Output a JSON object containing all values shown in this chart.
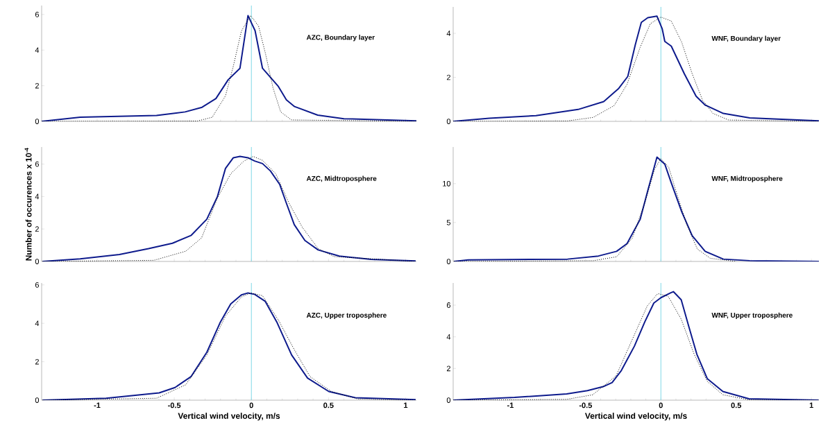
{
  "chart_data": [
    {
      "type": "line",
      "annotations": [
        "AZC, Boundary layer"
      ],
      "xlim": [
        -1.36,
        1.07
      ],
      "xticks": [
        -1,
        -0.5,
        0,
        0.5,
        1
      ],
      "ylim": [
        0,
        6.5
      ],
      "yticks": [
        0,
        2,
        4,
        6
      ],
      "tick_labels": "y",
      "ref_lines": [
        {
          "axis": "x",
          "value": 0,
          "color": "#7fd8e6"
        }
      ],
      "series": [
        {
          "color": "#0d1a8c",
          "line_style": "solid",
          "x": [
            -1.36,
            -1.11,
            -0.615,
            -0.43,
            -0.32,
            -0.23,
            -0.15,
            -0.074,
            -0.022,
            0.024,
            0.072,
            0.175,
            0.227,
            0.28,
            0.43,
            0.6,
            1.07
          ],
          "values": [
            0,
            0.23,
            0.33,
            0.53,
            0.79,
            1.28,
            2.34,
            2.98,
            5.94,
            5.09,
            2.98,
            1.96,
            1.21,
            0.83,
            0.35,
            0.15,
            0.03
          ]
        },
        {
          "color": "#000000",
          "line_style": "dotted",
          "x": [
            -1.36,
            -0.35,
            -0.254,
            -0.168,
            -0.117,
            -0.065,
            -0.005,
            0.046,
            0.09,
            0.14,
            0.19,
            0.26,
            1.07
          ],
          "values": [
            0,
            0.02,
            0.23,
            1.43,
            3.1,
            5.06,
            5.94,
            5.36,
            3.85,
            1.89,
            0.53,
            0.08,
            0
          ]
        }
      ]
    },
    {
      "type": "line",
      "annotations": [
        "WNF, Boundary layer"
      ],
      "xlim": [
        -1.38,
        1.05
      ],
      "xticks": [
        -1,
        -0.5,
        0,
        0.5,
        1
      ],
      "ylim": [
        0,
        5.2
      ],
      "yticks": [
        0,
        2,
        4
      ],
      "tick_labels": "y",
      "ref_lines": [
        {
          "axis": "x",
          "value": 0,
          "color": "#7fd8e6"
        }
      ],
      "series": [
        {
          "color": "#0d1a8c",
          "line_style": "solid",
          "x": [
            -1.38,
            -1.14,
            -0.83,
            -0.55,
            -0.38,
            -0.28,
            -0.22,
            -0.17,
            -0.13,
            -0.087,
            -0.026,
            0.009,
            0.026,
            0.069,
            0.156,
            0.234,
            0.294,
            0.415,
            0.59,
            1.05
          ],
          "values": [
            0,
            0.14,
            0.26,
            0.54,
            0.9,
            1.5,
            2.04,
            3.48,
            4.5,
            4.71,
            4.78,
            4.2,
            3.63,
            3.42,
            2.16,
            1.14,
            0.74,
            0.36,
            0.16,
            0.02
          ]
        },
        {
          "color": "#000000",
          "line_style": "dotted",
          "x": [
            -1.38,
            -0.62,
            -0.45,
            -0.31,
            -0.225,
            -0.138,
            -0.07,
            0,
            0.069,
            0.138,
            0.208,
            0.277,
            0.346,
            0.45,
            1.05
          ],
          "values": [
            0,
            0.02,
            0.18,
            0.72,
            1.68,
            3.36,
            4.44,
            4.74,
            4.56,
            3.6,
            2.16,
            0.96,
            0.36,
            0.06,
            0
          ]
        }
      ]
    },
    {
      "type": "line",
      "ylabel": "Number of occurences  x 10$^{-4}$",
      "annotations": [
        "AZC, Midtroposphere"
      ],
      "xlim": [
        -1.36,
        1.07
      ],
      "xticks": [
        -1,
        -0.5,
        0,
        0.5,
        1
      ],
      "ylim": [
        0,
        7.05
      ],
      "yticks": [
        0,
        2,
        4,
        6
      ],
      "tick_labels": "y",
      "ref_lines": [
        {
          "axis": "x",
          "value": 0,
          "color": "#7fd8e6"
        }
      ],
      "series": [
        {
          "color": "#0d1a8c",
          "line_style": "solid",
          "x": [
            -1.354,
            -1.11,
            -0.856,
            -0.667,
            -0.512,
            -0.39,
            -0.289,
            -0.22,
            -0.168,
            -0.117,
            -0.074,
            -0.022,
            0.021,
            0.072,
            0.124,
            0.184,
            0.227,
            0.278,
            0.347,
            0.433,
            0.57,
            0.777,
            1.065
          ],
          "values": [
            0,
            0.16,
            0.43,
            0.79,
            1.12,
            1.61,
            2.6,
            4.0,
            5.73,
            6.39,
            6.47,
            6.39,
            6.19,
            6.03,
            5.57,
            4.74,
            3.59,
            2.27,
            1.29,
            0.71,
            0.33,
            0.13,
            0.03
          ]
        },
        {
          "color": "#000000",
          "line_style": "dotted",
          "x": [
            -1.354,
            -0.632,
            -0.426,
            -0.323,
            -0.22,
            -0.134,
            -0.048,
            0.012,
            0.072,
            0.158,
            0.244,
            0.33,
            0.433,
            0.536,
            1.065
          ],
          "values": [
            0,
            0.07,
            0.63,
            1.45,
            3.92,
            5.4,
            6.19,
            6.47,
            6.23,
            5.4,
            3.59,
            2.11,
            0.79,
            0.3,
            0
          ]
        }
      ]
    },
    {
      "type": "line",
      "annotations": [
        "WNF, Midtroposphere"
      ],
      "xlim": [
        -1.38,
        1.05
      ],
      "xticks": [
        -1,
        -0.5,
        0,
        0.5,
        1
      ],
      "ylim": [
        0,
        14.7
      ],
      "yticks": [
        0,
        5,
        10
      ],
      "tick_labels": "y",
      "ref_lines": [
        {
          "axis": "x",
          "value": 0,
          "color": "#7fd8e6"
        }
      ],
      "series": [
        {
          "color": "#0d1a8c",
          "line_style": "solid",
          "x": [
            -1.375,
            -1.28,
            -0.62,
            -0.415,
            -0.294,
            -0.225,
            -0.138,
            -0.087,
            -0.026,
            0.026,
            0.069,
            0.138,
            0.208,
            0.294,
            0.415,
            0.59,
            1.05
          ],
          "values": [
            0,
            0.2,
            0.3,
            0.7,
            1.3,
            2.3,
            5.4,
            9.1,
            13.4,
            12.5,
            10.1,
            6.4,
            3.3,
            1.3,
            0.3,
            0.1,
            0
          ]
        },
        {
          "color": "#000000",
          "line_style": "dotted",
          "x": [
            -1.375,
            -0.45,
            -0.294,
            -0.19,
            -0.104,
            -0.043,
            0,
            0.052,
            0.104,
            0.173,
            0.242,
            0.329,
            0.5
          ],
          "values": [
            0,
            0.1,
            0.6,
            3.0,
            7.7,
            11.8,
            13.2,
            12.1,
            8.8,
            4.7,
            1.6,
            0.4,
            0
          ]
        }
      ]
    },
    {
      "type": "line",
      "xlabel": "Vertical wind velocity, m/s",
      "annotations": [
        "AZC, Upper troposphere"
      ],
      "xlim": [
        -1.36,
        1.07
      ],
      "xticks": [
        -1,
        -0.5,
        0,
        0.5,
        1
      ],
      "ylim": [
        0,
        6.1
      ],
      "yticks": [
        0,
        2,
        4,
        6
      ],
      "ref_lines": [
        {
          "axis": "x",
          "value": 0,
          "color": "#7fd8e6"
        }
      ],
      "series": [
        {
          "color": "#0d1a8c",
          "line_style": "solid",
          "x": [
            -1.354,
            -0.942,
            -0.598,
            -0.495,
            -0.392,
            -0.289,
            -0.203,
            -0.134,
            -0.065,
            -0.022,
            0.021,
            0.089,
            0.167,
            0.261,
            0.364,
            0.502,
            0.674,
            1.065
          ],
          "values": [
            0,
            0.1,
            0.38,
            0.66,
            1.22,
            2.49,
            4.03,
            5.01,
            5.48,
            5.58,
            5.51,
            5.15,
            4.03,
            2.35,
            1.15,
            0.45,
            0.13,
            0.03
          ]
        },
        {
          "color": "#000000",
          "line_style": "dotted",
          "x": [
            -1.354,
            -0.615,
            -0.426,
            -0.289,
            -0.168,
            -0.065,
            -0.005,
            0.072,
            0.175,
            0.278,
            0.381,
            0.519,
            0.69,
            1.065
          ],
          "values": [
            0,
            0.1,
            0.8,
            2.35,
            4.38,
            5.37,
            5.58,
            5.44,
            4.17,
            2.63,
            1.22,
            0.45,
            0.06,
            0
          ]
        }
      ]
    },
    {
      "type": "line",
      "xlabel": "Vertical wind velocity, m/s",
      "annotations": [
        "WNF, Upper troposphere"
      ],
      "xlim": [
        -1.38,
        1.05
      ],
      "xticks": [
        -1,
        -0.5,
        0,
        0.5,
        1
      ],
      "ylim": [
        0,
        7.4
      ],
      "yticks": [
        0,
        2,
        4,
        6
      ],
      "ref_lines": [
        {
          "axis": "x",
          "value": 0,
          "color": "#7fd8e6"
        }
      ],
      "series": [
        {
          "color": "#0d1a8c",
          "line_style": "solid",
          "x": [
            -1.379,
            -0.972,
            -0.626,
            -0.488,
            -0.384,
            -0.324,
            -0.263,
            -0.176,
            -0.107,
            -0.047,
            0,
            0.066,
            0.083,
            0.135,
            0.187,
            0.239,
            0.308,
            0.412,
            0.585,
            1.048
          ],
          "values": [
            0,
            0.17,
            0.39,
            0.6,
            0.85,
            1.11,
            1.87,
            3.41,
            4.94,
            6.13,
            6.47,
            6.78,
            6.85,
            6.34,
            4.6,
            2.9,
            1.36,
            0.55,
            0.09,
            0
          ]
        },
        {
          "color": "#000000",
          "line_style": "dotted",
          "x": [
            -1.379,
            -0.626,
            -0.453,
            -0.298,
            -0.194,
            -0.09,
            -0.021,
            0.048,
            0.135,
            0.221,
            0.308,
            0.412,
            0.585,
            1.048
          ],
          "values": [
            0,
            0.05,
            0.34,
            1.53,
            3.75,
            5.96,
            6.73,
            6.56,
            5.11,
            2.9,
            1.19,
            0.34,
            0.02,
            0
          ]
        }
      ]
    }
  ]
}
